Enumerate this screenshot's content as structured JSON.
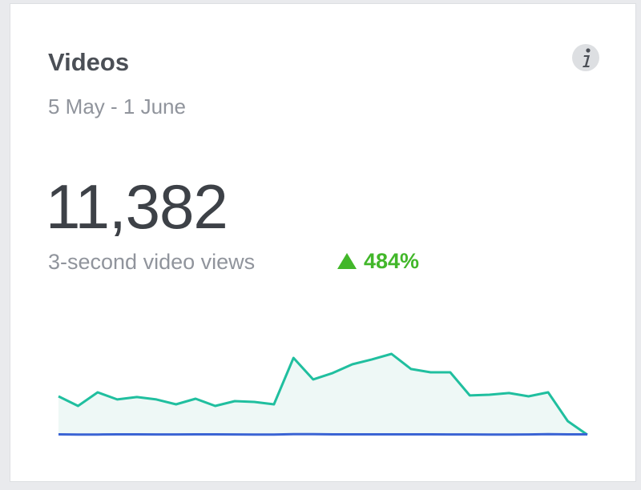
{
  "header": {
    "title": "Videos",
    "subtitle": "5 May - 1 June"
  },
  "metric": {
    "value": "11,382",
    "label": "3-second video views",
    "change": "484%"
  },
  "chart_data": {
    "type": "line",
    "series": [
      {
        "color": "#20bf9f",
        "area_color": "#eef8f6",
        "values": [
          355,
          266,
          392,
          326,
          348,
          326,
          281,
          333,
          266,
          311,
          303,
          281,
          710,
          511,
          570,
          651,
          696,
          747,
          607,
          577,
          577,
          363,
          370,
          385,
          355,
          392,
          126,
          0
        ]
      },
      {
        "color": "#3b64d4",
        "values": [
          4,
          2,
          2,
          4,
          4,
          3,
          3,
          4,
          4,
          3,
          2,
          2,
          6,
          5,
          4,
          4,
          4,
          4,
          4,
          4,
          3,
          3,
          2,
          2,
          3,
          6,
          4,
          4
        ]
      }
    ]
  }
}
